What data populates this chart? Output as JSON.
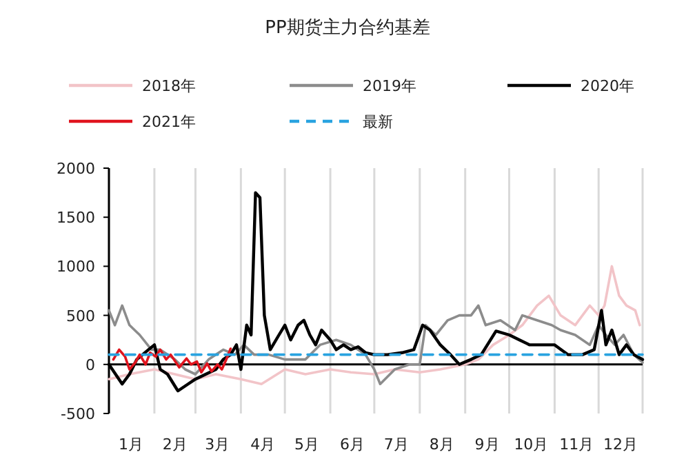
{
  "chart_data": {
    "type": "line",
    "title": "PP期货主力合约基差",
    "legend": "top",
    "grid": "x",
    "xlim": [
      "--01-01",
      "--12-31"
    ],
    "xticks": [
      {
        "value": "--01-01",
        "label": null
      },
      {
        "value": "--02-01",
        "label": null
      },
      {
        "value": "--03-01",
        "label": null
      },
      {
        "value": "--04-01",
        "label": null
      },
      {
        "value": "--05-01",
        "label": null
      },
      {
        "value": "--06-01",
        "label": null
      },
      {
        "value": "--07-01",
        "label": null
      },
      {
        "value": "--08-01",
        "label": null
      },
      {
        "value": "--09-01",
        "label": null
      },
      {
        "value": "--10-01",
        "label": null
      },
      {
        "value": "--11-01",
        "label": null
      },
      {
        "value": "--12-01",
        "label": null
      },
      {
        "value": "--12-31",
        "label": null
      },
      {
        "value": "--01-16",
        "label": "1月"
      },
      {
        "value": "--02-15",
        "label": "2月"
      },
      {
        "value": "--03-16",
        "label": "3月"
      },
      {
        "value": "--04-16",
        "label": "4月"
      },
      {
        "value": "--05-16",
        "label": "5月"
      },
      {
        "value": "--06-16",
        "label": "6月"
      },
      {
        "value": "--07-16",
        "label": "7月"
      },
      {
        "value": "--08-16",
        "label": "8月"
      },
      {
        "value": "--09-16",
        "label": "9月"
      },
      {
        "value": "--10-16",
        "label": "10月"
      },
      {
        "value": "--11-16",
        "label": "11月"
      },
      {
        "value": "--12-16",
        "label": "12月"
      }
    ],
    "ylim": [
      -500,
      2000
    ],
    "yticks": [
      -500,
      0,
      500,
      1000,
      1500,
      2000
    ],
    "series": [
      {
        "name": "2018年",
        "color": "#f2c4c8",
        "x": [
          "--01-01",
          "--01-15",
          "--02-01",
          "--02-15",
          "--03-01",
          "--03-15",
          "--04-01",
          "--04-15",
          "--05-01",
          "--05-15",
          "--06-01",
          "--06-15",
          "--07-01",
          "--07-15",
          "--08-01",
          "--08-15",
          "--09-01",
          "--09-10",
          "--09-20",
          "--10-01",
          "--10-10",
          "--10-20",
          "--10-28",
          "--11-05",
          "--11-15",
          "--11-25",
          "--12-01",
          "--12-05",
          "--12-10",
          "--12-15",
          "--12-20",
          "--12-26",
          "--12-29"
        ],
        "values": [
          -150,
          -100,
          -50,
          -100,
          -150,
          -100,
          -150,
          -200,
          -50,
          -100,
          -50,
          -80,
          -100,
          -50,
          -80,
          -50,
          0,
          50,
          200,
          300,
          400,
          600,
          700,
          500,
          400,
          600,
          500,
          600,
          1000,
          700,
          600,
          550,
          400
        ]
      },
      {
        "name": "2019年",
        "color": "#8c8c8c",
        "x": [
          "--01-01",
          "--01-05",
          "--01-10",
          "--01-15",
          "--01-22",
          "--01-30",
          "--02-05",
          "--02-15",
          "--02-22",
          "--03-01",
          "--03-10",
          "--03-20",
          "--03-28",
          "--04-03",
          "--04-10",
          "--04-20",
          "--05-01",
          "--05-15",
          "--05-25",
          "--06-05",
          "--06-15",
          "--06-25",
          "--07-01",
          "--07-05",
          "--07-15",
          "--07-25",
          "--08-01",
          "--08-05",
          "--08-12",
          "--08-20",
          "--08-28",
          "--09-05",
          "--09-10",
          "--09-15",
          "--09-25",
          "--10-05",
          "--10-10",
          "--10-20",
          "--10-30",
          "--11-05",
          "--11-15",
          "--11-25",
          "--12-01",
          "--12-06",
          "--12-12",
          "--12-18",
          "--12-25",
          "--12-31"
        ],
        "values": [
          550,
          400,
          600,
          400,
          300,
          150,
          150,
          50,
          -50,
          -100,
          50,
          150,
          100,
          200,
          100,
          100,
          50,
          50,
          200,
          250,
          200,
          100,
          -50,
          -200,
          -50,
          0,
          0,
          400,
          300,
          450,
          500,
          500,
          600,
          400,
          450,
          350,
          500,
          450,
          400,
          350,
          300,
          200,
          400,
          300,
          200,
          300,
          100,
          20
        ]
      },
      {
        "name": "2020年",
        "color": "#000000",
        "x": [
          "--01-01",
          "--01-10",
          "--01-15",
          "--01-20",
          "--01-28",
          "--02-01",
          "--02-05",
          "--02-10",
          "--02-17",
          "--02-24",
          "--03-01",
          "--03-08",
          "--03-15",
          "--03-20",
          "--03-25",
          "--03-29",
          "--04-01",
          "--04-05",
          "--04-08",
          "--04-11",
          "--04-14",
          "--04-17",
          "--04-21",
          "--04-27",
          "--05-01",
          "--05-05",
          "--05-10",
          "--05-14",
          "--05-18",
          "--05-22",
          "--05-26",
          "--06-01",
          "--06-05",
          "--06-10",
          "--06-15",
          "--06-20",
          "--06-25",
          "--07-01",
          "--07-10",
          "--07-20",
          "--07-28",
          "--08-03",
          "--08-08",
          "--08-15",
          "--08-22",
          "--08-28",
          "--09-05",
          "--09-12",
          "--09-22",
          "--10-01",
          "--10-08",
          "--10-15",
          "--10-25",
          "--11-01",
          "--11-10",
          "--11-20",
          "--11-28",
          "--12-03",
          "--12-06",
          "--12-10",
          "--12-15",
          "--12-20",
          "--12-25",
          "--12-31"
        ],
        "values": [
          0,
          -200,
          -100,
          50,
          150,
          200,
          -50,
          -100,
          -270,
          -200,
          -150,
          -100,
          -50,
          50,
          100,
          200,
          -50,
          400,
          300,
          1750,
          1700,
          500,
          150,
          300,
          400,
          250,
          400,
          450,
          300,
          200,
          350,
          250,
          150,
          200,
          150,
          180,
          120,
          100,
          100,
          120,
          150,
          400,
          350,
          200,
          100,
          0,
          50,
          100,
          340,
          300,
          250,
          200,
          200,
          200,
          100,
          100,
          150,
          550,
          200,
          350,
          100,
          200,
          100,
          50
        ]
      },
      {
        "name": "2021年",
        "color": "#e0141e",
        "x": [
          "--01-04",
          "--01-08",
          "--01-12",
          "--01-15",
          "--01-19",
          "--01-22",
          "--01-26",
          "--01-29",
          "--02-02",
          "--02-05",
          "--02-09",
          "--02-12",
          "--02-18",
          "--02-23",
          "--02-26",
          "--03-02",
          "--03-05",
          "--03-09",
          "--03-12",
          "--03-16",
          "--03-19",
          "--03-22",
          "--03-25"
        ],
        "values": [
          50,
          150,
          80,
          -50,
          20,
          100,
          0,
          120,
          80,
          150,
          50,
          100,
          -30,
          60,
          0,
          30,
          -80,
          10,
          -70,
          0,
          -50,
          50,
          160
        ]
      },
      {
        "name": "最新",
        "color": "#29a3e0",
        "line_style": "dashed",
        "x": [
          "--01-01",
          "--12-31"
        ],
        "values": [
          100,
          100
        ]
      }
    ]
  }
}
